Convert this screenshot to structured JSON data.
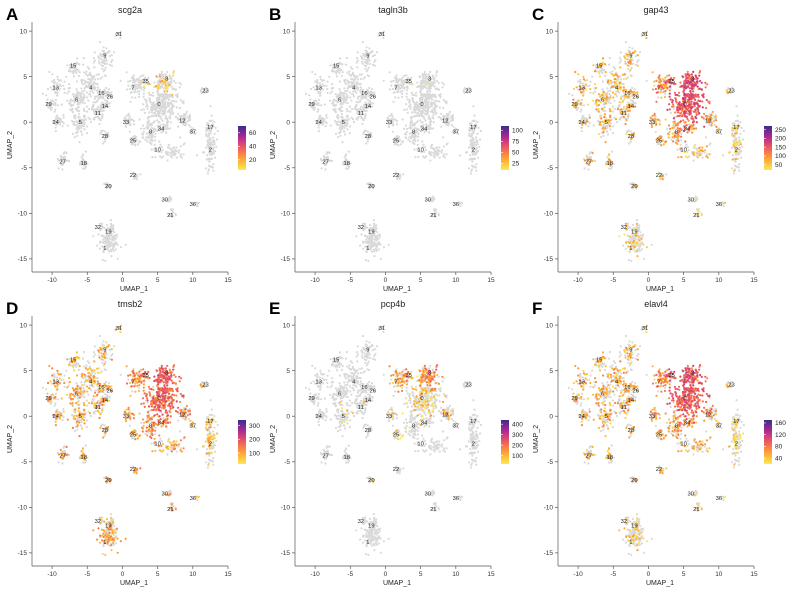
{
  "chart_data": {
    "type": "scatter",
    "description_axes": {
      "xlabel": "UMAP_1",
      "ylabel": "UMAP_2",
      "xlim": [
        -12,
        15
      ],
      "ylim": [
        -16,
        11
      ],
      "xticks": [
        -10,
        -5,
        0,
        5,
        10,
        15
      ],
      "yticks": [
        -15,
        -10,
        -5,
        0,
        5,
        10
      ]
    },
    "colors": {
      "background": "#d9d9d9",
      "low": "#fce94f",
      "high": "#3b2c8c"
    },
    "clusters": [
      {
        "id": "0",
        "x": 5.5,
        "y": 2.0,
        "sx": 1.6,
        "sy": 1.5,
        "n": 260
      },
      {
        "id": "1",
        "x": -2.0,
        "y": -13.2,
        "sx": 1.0,
        "sy": 0.9,
        "n": 120
      },
      {
        "id": "2",
        "x": 12.4,
        "y": -2.5,
        "sx": 0.6,
        "sy": 1.8,
        "n": 110
      },
      {
        "id": "3",
        "x": 6.0,
        "y": 4.5,
        "sx": 1.0,
        "sy": 0.8,
        "n": 100
      },
      {
        "id": "4",
        "x": -4.5,
        "y": 4.0,
        "sx": 1.0,
        "sy": 1.2,
        "n": 90
      },
      {
        "id": "5",
        "x": -6.0,
        "y": 0.0,
        "sx": 0.9,
        "sy": 0.9,
        "n": 80
      },
      {
        "id": "6",
        "x": -6.5,
        "y": 2.5,
        "sx": 0.9,
        "sy": 1.0,
        "n": 80
      },
      {
        "id": "7",
        "x": 2.0,
        "y": 4.0,
        "sx": 0.9,
        "sy": 0.8,
        "n": 70
      },
      {
        "id": "8",
        "x": 4.0,
        "y": -1.0,
        "sx": 1.0,
        "sy": 1.2,
        "n": 70
      },
      {
        "id": "9",
        "x": -2.5,
        "y": 7.0,
        "sx": 0.8,
        "sy": 1.0,
        "n": 60
      },
      {
        "id": "10",
        "x": 6.8,
        "y": -3.2,
        "sx": 1.4,
        "sy": 0.6,
        "n": 60
      },
      {
        "id": "11",
        "x": -3.5,
        "y": 1.0,
        "sx": 0.6,
        "sy": 0.6,
        "n": 45
      },
      {
        "id": "12",
        "x": 8.8,
        "y": 0.3,
        "sx": 0.7,
        "sy": 0.5,
        "n": 40
      },
      {
        "id": "13",
        "x": -9.5,
        "y": 3.8,
        "sx": 0.8,
        "sy": 0.8,
        "n": 45
      },
      {
        "id": "14",
        "x": -2.5,
        "y": 1.8,
        "sx": 0.4,
        "sy": 0.4,
        "n": 25
      },
      {
        "id": "15",
        "x": -6.8,
        "y": 6.0,
        "sx": 0.8,
        "sy": 0.8,
        "n": 40
      },
      {
        "id": "16",
        "x": -3.0,
        "y": 3.0,
        "sx": 0.4,
        "sy": 0.4,
        "n": 25
      },
      {
        "id": "17",
        "x": 12.5,
        "y": -0.5,
        "sx": 0.5,
        "sy": 0.5,
        "n": 25
      },
      {
        "id": "18",
        "x": -5.5,
        "y": -4.5,
        "sx": 0.4,
        "sy": 0.6,
        "n": 25
      },
      {
        "id": "19",
        "x": -1.5,
        "y": -11.5,
        "sx": 0.4,
        "sy": 0.4,
        "n": 20
      },
      {
        "id": "20",
        "x": -2.0,
        "y": -7.0,
        "sx": 0.3,
        "sy": 0.3,
        "n": 15
      },
      {
        "id": "21",
        "x": 7.0,
        "y": -10.0,
        "sx": 0.3,
        "sy": 0.4,
        "n": 15
      },
      {
        "id": "22",
        "x": 2.0,
        "y": -6.0,
        "sx": 0.3,
        "sy": 0.3,
        "n": 15
      },
      {
        "id": "23",
        "x": 11.5,
        "y": 3.5,
        "sx": 0.3,
        "sy": 0.3,
        "n": 15
      },
      {
        "id": "24",
        "x": -9.0,
        "y": 0.0,
        "sx": 0.6,
        "sy": 0.6,
        "n": 35
      },
      {
        "id": "25",
        "x": 1.8,
        "y": -2.0,
        "sx": 0.6,
        "sy": 0.5,
        "n": 30
      },
      {
        "id": "26",
        "x": -2.0,
        "y": 3.2,
        "sx": 0.4,
        "sy": 0.4,
        "n": 20
      },
      {
        "id": "27",
        "x": -8.5,
        "y": -4.0,
        "sx": 0.5,
        "sy": 0.6,
        "n": 30
      },
      {
        "id": "28",
        "x": -2.5,
        "y": -1.5,
        "sx": 0.4,
        "sy": 0.4,
        "n": 20
      },
      {
        "id": "29",
        "x": -10.0,
        "y": 2.0,
        "sx": 0.5,
        "sy": 0.5,
        "n": 30
      },
      {
        "id": "30",
        "x": 6.5,
        "y": -8.5,
        "sx": 0.3,
        "sy": 0.3,
        "n": 12
      },
      {
        "id": "31",
        "x": -0.5,
        "y": 9.7,
        "sx": 0.3,
        "sy": 0.3,
        "n": 10
      },
      {
        "id": "32",
        "x": -3.0,
        "y": -11.5,
        "sx": 0.3,
        "sy": 0.3,
        "n": 10
      },
      {
        "id": "33",
        "x": 1.0,
        "y": 0.0,
        "sx": 0.5,
        "sy": 0.5,
        "n": 25
      },
      {
        "id": "34",
        "x": 6.0,
        "y": -0.5,
        "sx": 0.5,
        "sy": 0.4,
        "n": 20
      },
      {
        "id": "35",
        "x": 3.0,
        "y": 4.5,
        "sx": 0.5,
        "sy": 0.5,
        "n": 20
      },
      {
        "id": "36",
        "x": 10.5,
        "y": -9.0,
        "sx": 0.2,
        "sy": 0.2,
        "n": 6
      },
      {
        "id": "37",
        "x": 10.0,
        "y": -1.0,
        "sx": 0.3,
        "sy": 0.3,
        "n": 10
      }
    ],
    "label_positions": [
      {
        "id": "0",
        "x": 5.2,
        "y": 2.0
      },
      {
        "id": "1",
        "x": -2.5,
        "y": -13.8
      },
      {
        "id": "2",
        "x": 12.5,
        "y": -3.0
      },
      {
        "id": "3",
        "x": 6.3,
        "y": 4.8
      },
      {
        "id": "4",
        "x": -4.5,
        "y": 3.8
      },
      {
        "id": "5",
        "x": -6.0,
        "y": 0.0
      },
      {
        "id": "6",
        "x": -6.5,
        "y": 2.5
      },
      {
        "id": "7",
        "x": 1.5,
        "y": 3.8
      },
      {
        "id": "8",
        "x": 4.0,
        "y": -1.0
      },
      {
        "id": "9",
        "x": -2.5,
        "y": 7.3
      },
      {
        "id": "10",
        "x": 5.0,
        "y": -3.0
      },
      {
        "id": "11",
        "x": -3.5,
        "y": 1.0
      },
      {
        "id": "12",
        "x": 8.5,
        "y": 0.2
      },
      {
        "id": "13",
        "x": -9.5,
        "y": 3.8
      },
      {
        "id": "14",
        "x": -2.5,
        "y": 1.8
      },
      {
        "id": "15",
        "x": -7.0,
        "y": 6.2
      },
      {
        "id": "16",
        "x": -3.0,
        "y": 3.2
      },
      {
        "id": "17",
        "x": 12.5,
        "y": -0.5
      },
      {
        "id": "18",
        "x": -5.5,
        "y": -4.5
      },
      {
        "id": "19",
        "x": -2.0,
        "y": -12.0
      },
      {
        "id": "20",
        "x": -2.0,
        "y": -7.0
      },
      {
        "id": "21",
        "x": 6.8,
        "y": -10.2
      },
      {
        "id": "22",
        "x": 1.5,
        "y": -5.8
      },
      {
        "id": "23",
        "x": 11.8,
        "y": 3.5
      },
      {
        "id": "24",
        "x": -9.5,
        "y": 0.0
      },
      {
        "id": "25",
        "x": 1.5,
        "y": -2.0
      },
      {
        "id": "26",
        "x": -1.8,
        "y": 2.8
      },
      {
        "id": "27",
        "x": -8.5,
        "y": -4.3
      },
      {
        "id": "28",
        "x": -2.5,
        "y": -1.5
      },
      {
        "id": "29",
        "x": -10.5,
        "y": 2.0
      },
      {
        "id": "30",
        "x": 6.0,
        "y": -8.5
      },
      {
        "id": "31",
        "x": -0.5,
        "y": 9.7
      },
      {
        "id": "32",
        "x": -3.5,
        "y": -11.5
      },
      {
        "id": "33",
        "x": 0.5,
        "y": 0.0
      },
      {
        "id": "34",
        "x": 5.5,
        "y": -0.7
      },
      {
        "id": "35",
        "x": 3.3,
        "y": 4.5
      },
      {
        "id": "36",
        "x": 10.0,
        "y": -9.0
      },
      {
        "id": "37",
        "x": 10.0,
        "y": -1.0
      }
    ],
    "panels": [
      {
        "letter": "A",
        "title": "scg2a",
        "cbar_min": 5,
        "cbar_max": 70,
        "cbar_ticks": [
          "60",
          "40",
          "20"
        ],
        "cbar_tick_values": [
          60,
          40,
          20
        ],
        "expr": {
          "3": 0.25,
          "35": 0.12
        }
      },
      {
        "letter": "B",
        "title": "tagln3b",
        "cbar_min": 10,
        "cbar_max": 110,
        "cbar_ticks": [
          "100",
          "75",
          "50",
          "25"
        ],
        "cbar_tick_values": [
          100,
          75,
          50,
          25
        ],
        "expr": {
          "35": 0.04,
          "3": 0.02
        }
      },
      {
        "letter": "C",
        "title": "gap43",
        "cbar_min": 20,
        "cbar_max": 270,
        "cbar_ticks": [
          "250",
          "200",
          "150",
          "100",
          "50"
        ],
        "cbar_tick_values": [
          250,
          200,
          150,
          100,
          50
        ],
        "expr": {
          "0": 0.9,
          "3": 0.95,
          "35": 0.9,
          "7": 0.55,
          "8": 0.5,
          "12": 0.5,
          "34": 0.5,
          "33": 0.45,
          "25": 0.4,
          "10": 0.3,
          "4": 0.35,
          "5": 0.35,
          "6": 0.35,
          "9": 0.35,
          "11": 0.35,
          "13": 0.35,
          "14": 0.35,
          "15": 0.35,
          "16": 0.35,
          "18": 0.3,
          "24": 0.35,
          "26": 0.35,
          "27": 0.3,
          "28": 0.35,
          "29": 0.35,
          "1": 0.2,
          "2": 0.18,
          "17": 0.2,
          "19": 0.2,
          "20": 0.3,
          "21": 0.25,
          "22": 0.3,
          "23": 0.25,
          "30": 0.25,
          "31": 0.3,
          "32": 0.25,
          "36": 0.2,
          "37": 0.2
        }
      },
      {
        "letter": "D",
        "title": "tmsb2",
        "cbar_min": 20,
        "cbar_max": 340,
        "cbar_ticks": [
          "300",
          "200",
          "100"
        ],
        "cbar_tick_values": [
          300,
          200,
          100
        ],
        "expr": {
          "0": 0.8,
          "3": 0.85,
          "35": 0.8,
          "7": 0.55,
          "8": 0.55,
          "12": 0.55,
          "34": 0.5,
          "33": 0.5,
          "25": 0.45,
          "10": 0.4,
          "1": 0.45,
          "19": 0.4,
          "32": 0.4,
          "4": 0.4,
          "5": 0.4,
          "6": 0.4,
          "9": 0.4,
          "11": 0.4,
          "13": 0.4,
          "14": 0.4,
          "15": 0.4,
          "16": 0.4,
          "18": 0.4,
          "24": 0.4,
          "26": 0.4,
          "27": 0.4,
          "28": 0.4,
          "29": 0.4,
          "2": 0.3,
          "17": 0.3,
          "20": 0.4,
          "21": 0.4,
          "22": 0.45,
          "23": 0.35,
          "30": 0.4,
          "31": 0.35,
          "36": 0.3,
          "37": 0.3
        }
      },
      {
        "letter": "E",
        "title": "pcp4b",
        "cbar_min": 20,
        "cbar_max": 440,
        "cbar_ticks": [
          "400",
          "300",
          "200",
          "100"
        ],
        "cbar_tick_values": [
          400,
          300,
          200,
          100
        ],
        "expr": {
          "3": 0.6,
          "35": 0.5,
          "7": 0.45,
          "12": 0.35,
          "0": 0.25,
          "25": 0.2,
          "33": 0.15,
          "5": 0.1,
          "14": 0.1,
          "20": 0.2
        }
      },
      {
        "letter": "F",
        "title": "elavl4",
        "cbar_min": 20,
        "cbar_max": 170,
        "cbar_ticks": [
          "160",
          "120",
          "80",
          "40"
        ],
        "cbar_tick_values": [
          160,
          120,
          80,
          40
        ],
        "expr": {
          "0": 0.85,
          "3": 0.9,
          "35": 0.85,
          "7": 0.55,
          "8": 0.5,
          "12": 0.5,
          "34": 0.5,
          "33": 0.45,
          "25": 0.4,
          "10": 0.35,
          "4": 0.4,
          "5": 0.4,
          "6": 0.4,
          "9": 0.4,
          "11": 0.4,
          "13": 0.4,
          "14": 0.4,
          "15": 0.4,
          "16": 0.4,
          "18": 0.35,
          "24": 0.4,
          "26": 0.4,
          "27": 0.35,
          "28": 0.4,
          "29": 0.4,
          "1": 0.25,
          "2": 0.2,
          "17": 0.2,
          "19": 0.25,
          "20": 0.35,
          "21": 0.3,
          "22": 0.35,
          "23": 0.3,
          "30": 0.3,
          "31": 0.3,
          "32": 0.3,
          "36": 0.2,
          "37": 0.25
        }
      }
    ]
  }
}
